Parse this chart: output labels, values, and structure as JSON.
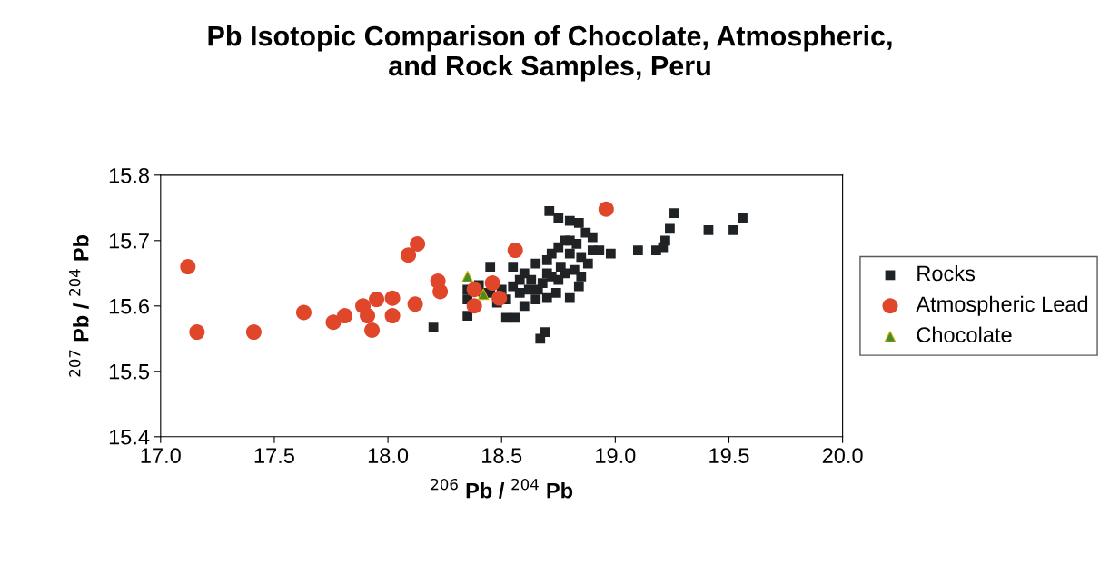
{
  "chart_data": {
    "type": "scatter",
    "title": "Pb Isotopic Comparison of Chocolate, Atmospheric,\nand Rock Samples, Peru",
    "xlabel": "$^{206}$ Pb / $^{204}$ Pb",
    "ylabel": "$^{207}$ Pb / $^{204}$ Pb",
    "xlim": [
      17.0,
      20.0
    ],
    "ylim": [
      15.4,
      15.8
    ],
    "xticks": [
      {
        "value": 17.0,
        "label": "17.0"
      },
      {
        "value": 17.5,
        "label": "17.5"
      },
      {
        "value": 18.0,
        "label": "18.0"
      },
      {
        "value": 18.5,
        "label": "18.5"
      },
      {
        "value": 19.0,
        "label": "19.0"
      },
      {
        "value": 19.5,
        "label": "19.5"
      },
      {
        "value": 20.0,
        "label": "20.0"
      }
    ],
    "yticks": [
      {
        "value": 15.4,
        "label": "15.4"
      },
      {
        "value": 15.5,
        "label": "15.5"
      },
      {
        "value": 15.6,
        "label": "15.6"
      },
      {
        "value": 15.7,
        "label": "15.7"
      },
      {
        "value": 15.8,
        "label": "15.8"
      }
    ],
    "grid": false,
    "legend": "right",
    "series": [
      {
        "name": "Rocks",
        "color": "#1f2326",
        "marker": "square",
        "x": [
          18.2,
          18.35,
          18.35,
          18.35,
          18.45,
          18.52,
          18.56,
          18.67,
          18.69,
          18.71,
          18.75,
          18.8,
          18.84,
          18.87,
          18.9,
          18.93,
          18.98,
          19.1,
          19.18,
          19.21,
          19.22,
          19.24,
          19.26,
          19.41,
          19.52,
          19.56,
          18.88,
          18.84,
          18.8,
          18.7,
          18.65,
          18.62,
          18.58,
          18.55,
          18.6,
          18.65,
          18.7,
          18.72,
          18.75,
          18.78,
          18.8,
          18.83,
          18.76,
          18.72,
          18.68,
          18.63,
          18.55,
          18.5,
          18.47,
          18.45,
          18.42,
          18.8,
          18.85,
          18.78,
          18.74,
          18.66,
          18.6,
          18.52,
          18.9,
          18.82,
          18.7,
          18.75,
          18.85,
          18.58,
          18.48,
          18.4
        ],
        "values": [
          15.567,
          15.585,
          15.61,
          15.625,
          15.66,
          15.582,
          15.582,
          15.55,
          15.56,
          15.745,
          15.735,
          15.73,
          15.727,
          15.712,
          15.705,
          15.685,
          15.68,
          15.685,
          15.685,
          15.69,
          15.7,
          15.718,
          15.742,
          15.716,
          15.716,
          15.735,
          15.665,
          15.63,
          15.612,
          15.612,
          15.61,
          15.625,
          15.64,
          15.66,
          15.65,
          15.665,
          15.67,
          15.68,
          15.69,
          15.7,
          15.7,
          15.695,
          15.66,
          15.645,
          15.635,
          15.64,
          15.63,
          15.625,
          null,
          15.62,
          15.62,
          15.68,
          15.675,
          15.65,
          15.62,
          15.625,
          15.6,
          15.61,
          15.685,
          15.655,
          15.65,
          15.64,
          15.645,
          15.62,
          15.605,
          15.632
        ]
      },
      {
        "name": "Atmospheric Lead",
        "color": "#e0462a",
        "marker": "circle",
        "x": [
          17.12,
          17.16,
          17.41,
          17.63,
          17.76,
          17.81,
          17.89,
          17.91,
          17.93,
          17.95,
          18.02,
          18.02,
          18.09,
          18.13,
          18.12,
          18.2,
          18.22,
          18.23,
          18.38,
          18.38,
          18.46,
          18.49,
          18.56,
          18.96
        ],
        "values": [
          15.66,
          15.56,
          15.56,
          15.59,
          15.575,
          15.585,
          15.6,
          15.585,
          15.563,
          15.61,
          15.612,
          15.585,
          15.678,
          15.695,
          15.603,
          null,
          15.638,
          15.622,
          15.625,
          15.6,
          15.635,
          15.612,
          15.685,
          15.748
        ]
      },
      {
        "name": "Chocolate",
        "color": "#4a8a2a",
        "marker": "triangle",
        "x": [
          18.35,
          18.42
        ],
        "values": [
          15.645,
          15.618
        ]
      }
    ]
  }
}
